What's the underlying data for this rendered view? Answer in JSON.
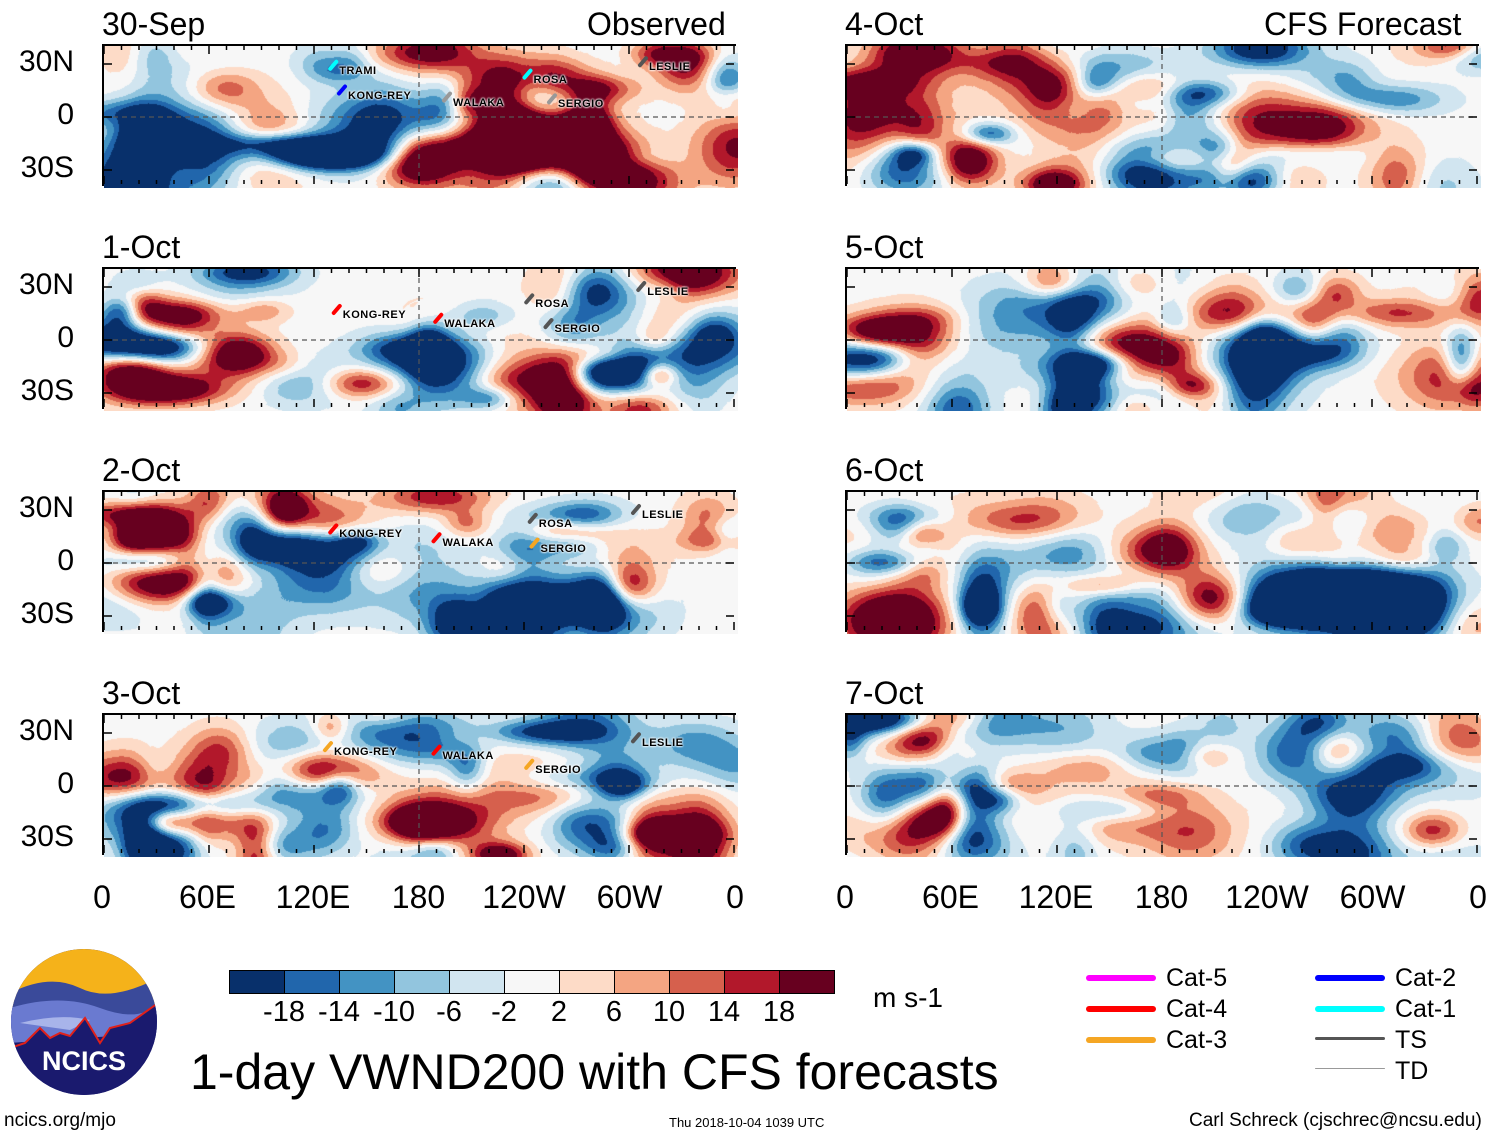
{
  "headers": {
    "left": "Observed",
    "right": "CFS Forecast"
  },
  "panels": [
    {
      "date": "30-Sep",
      "column": "observed",
      "seed": 11,
      "storms": [
        {
          "name": "TRAMI",
          "lon": 131,
          "lat": 29,
          "cat": "Cat-1"
        },
        {
          "name": "KONG-REY",
          "lon": 136,
          "lat": 15,
          "cat": "Cat-2"
        },
        {
          "name": "WALAKA",
          "lon": 196,
          "lat": 11,
          "cat": "TD"
        },
        {
          "name": "ROSA",
          "lon": 242,
          "lat": 24,
          "cat": "Cat-1"
        },
        {
          "name": "SERGIO",
          "lon": 256,
          "lat": 10,
          "cat": "TD"
        },
        {
          "name": "LESLIE",
          "lon": 308,
          "lat": 31,
          "cat": "TS"
        }
      ]
    },
    {
      "date": "1-Oct",
      "column": "observed",
      "seed": 23,
      "storms": [
        {
          "name": "KONG-REY",
          "lon": 133,
          "lat": 17,
          "cat": "Cat-4"
        },
        {
          "name": "WALAKA",
          "lon": 191,
          "lat": 12,
          "cat": "Cat-4"
        },
        {
          "name": "ROSA",
          "lon": 243,
          "lat": 23,
          "cat": "TS"
        },
        {
          "name": "SERGIO",
          "lon": 254,
          "lat": 9,
          "cat": "TS"
        },
        {
          "name": "LESLIE",
          "lon": 307,
          "lat": 30,
          "cat": "TS"
        }
      ]
    },
    {
      "date": "2-Oct",
      "column": "observed",
      "seed": 37,
      "storms": [
        {
          "name": "KONG-REY",
          "lon": 131,
          "lat": 19,
          "cat": "Cat-4"
        },
        {
          "name": "WALAKA",
          "lon": 190,
          "lat": 14,
          "cat": "Cat-4"
        },
        {
          "name": "ROSA",
          "lon": 245,
          "lat": 25,
          "cat": "TS"
        },
        {
          "name": "SERGIO",
          "lon": 246,
          "lat": 11,
          "cat": "Cat-3"
        },
        {
          "name": "LESLIE",
          "lon": 304,
          "lat": 30,
          "cat": "TS"
        }
      ]
    },
    {
      "date": "3-Oct",
      "column": "observed",
      "seed": 41,
      "storms": [
        {
          "name": "KONG-REY",
          "lon": 128,
          "lat": 22,
          "cat": "Cat-3"
        },
        {
          "name": "WALAKA",
          "lon": 190,
          "lat": 20,
          "cat": "Cat-4"
        },
        {
          "name": "SERGIO",
          "lon": 243,
          "lat": 12,
          "cat": "Cat-3"
        },
        {
          "name": "LESLIE",
          "lon": 304,
          "lat": 27,
          "cat": "TS"
        }
      ]
    },
    {
      "date": "4-Oct",
      "column": "forecast",
      "seed": 53,
      "storms": []
    },
    {
      "date": "5-Oct",
      "column": "forecast",
      "seed": 67,
      "storms": []
    },
    {
      "date": "6-Oct",
      "column": "forecast",
      "seed": 71,
      "storms": []
    },
    {
      "date": "7-Oct",
      "column": "forecast",
      "seed": 89,
      "storms": []
    }
  ],
  "lat_labels": [
    "30N",
    "0",
    "30S"
  ],
  "lon_labels": [
    "0",
    "60E",
    "120E",
    "180",
    "120W",
    "60W",
    "0"
  ],
  "colorbar": {
    "colors": [
      "#08306b",
      "#2166ac",
      "#4393c3",
      "#92c5de",
      "#d1e5f0",
      "#f7f7f7",
      "#fddbc7",
      "#f4a582",
      "#d6604d",
      "#b2182b",
      "#67001f"
    ],
    "labels": [
      "-18",
      "-14",
      "-10",
      "-6",
      "-2",
      "2",
      "6",
      "10",
      "14",
      "18"
    ],
    "units": "m s-1"
  },
  "legend": [
    {
      "label": "Cat-5",
      "color": "#ff00ff"
    },
    {
      "label": "Cat-4",
      "color": "#ff0000"
    },
    {
      "label": "Cat-3",
      "color": "#f5a623"
    },
    {
      "label": "Cat-2",
      "color": "#0000ff"
    },
    {
      "label": "Cat-1",
      "color": "#00ffff"
    },
    {
      "label": "TS",
      "color": "#555555"
    },
    {
      "label": "TD",
      "color": "#999999"
    }
  ],
  "title": "1-day VWND200 with CFS forecasts",
  "logo": {
    "text": "NCICS"
  },
  "footer": {
    "url": "ncics.org/mjo",
    "timestamp": "Thu 2018-10-04 1039 UTC",
    "credit": "Carl Schreck (cjschrec@ncsu.edu)"
  }
}
